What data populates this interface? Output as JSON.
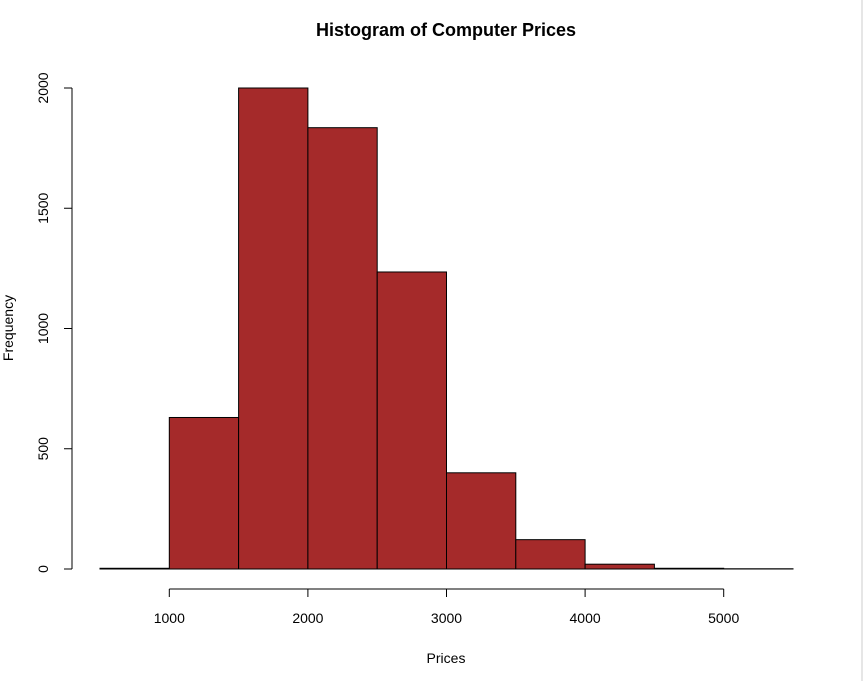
{
  "chart_data": {
    "type": "bar",
    "title": "Histogram of Computer Prices",
    "xlabel": "Prices",
    "ylabel": "Frequency",
    "bin_edges": [
      500,
      1000,
      1500,
      2000,
      2500,
      3000,
      3500,
      4000,
      4500,
      5000,
      5500
    ],
    "values": [
      3,
      630,
      2000,
      1835,
      1235,
      400,
      122,
      20,
      3,
      1
    ],
    "xlim": [
      500,
      5500
    ],
    "ylim": [
      0,
      2000
    ],
    "xticks": [
      1000,
      2000,
      3000,
      4000,
      5000
    ],
    "yticks": [
      0,
      500,
      1000,
      1500,
      2000
    ],
    "bar_color": "#A52A2A",
    "bar_border_color": "#000000",
    "grid": false,
    "legend": "none"
  }
}
